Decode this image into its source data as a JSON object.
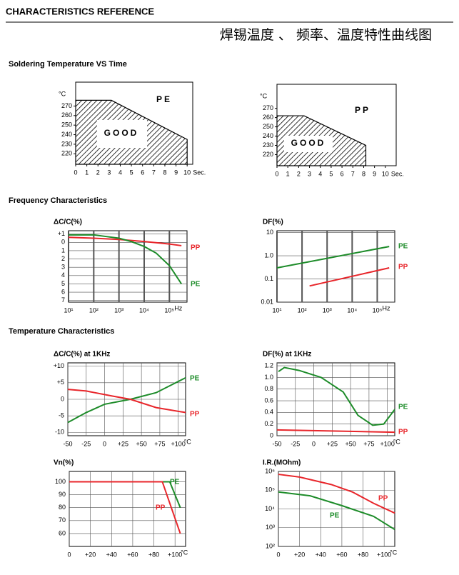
{
  "header": {
    "title": "CHARACTERISTICS REFERENCE",
    "subtitle": "焊锡温度 、 频率、温度特性曲线图"
  },
  "sections": [
    "Soldering Temperature VS Time",
    "Frequency Characteristics",
    "Temperature Characteristics"
  ],
  "chart_data": [
    {
      "type": "area",
      "y_unit": "°C",
      "x_unit": "Sec.",
      "xlim": [
        0,
        10.5
      ],
      "ylim": [
        209,
        295
      ],
      "xticks": [
        0,
        1,
        2,
        3,
        4,
        5,
        6,
        7,
        8,
        9,
        10
      ],
      "yticks": [
        220,
        230,
        240,
        250,
        260,
        270
      ],
      "grid": false,
      "annotations": [
        "GOOD",
        "PE"
      ],
      "series": [
        {
          "name": "PE",
          "color": "#000000",
          "x": [
            0,
            3.2,
            10
          ],
          "values": [
            276,
            276,
            235
          ]
        }
      ]
    },
    {
      "type": "area",
      "y_unit": "°C",
      "x_unit": "Sec.",
      "xlim": [
        0,
        11
      ],
      "ylim": [
        208,
        296
      ],
      "xticks": [
        0,
        1,
        2,
        3,
        4,
        5,
        6,
        7,
        8,
        9,
        10
      ],
      "yticks": [
        220,
        230,
        240,
        250,
        260,
        270
      ],
      "grid": false,
      "annotations": [
        "GOOD",
        "PP"
      ],
      "series": [
        {
          "name": "PP",
          "color": "#000000",
          "x": [
            0,
            2.5,
            8.2
          ],
          "values": [
            262,
            262,
            230
          ]
        }
      ]
    },
    {
      "type": "line",
      "title": "ΔC/C(%)",
      "x_unit": "Hz",
      "xlog": true,
      "xlim": [
        10,
        500000
      ],
      "ylim": [
        -7.2,
        1.4
      ],
      "grid": true,
      "xticks": [
        {
          "value": 10,
          "label": "10¹"
        },
        {
          "value": 100,
          "label": "10²"
        },
        {
          "value": 1000,
          "label": "10³"
        },
        {
          "value": 10000,
          "label": "10⁴"
        },
        {
          "value": 100000,
          "label": "10⁵"
        }
      ],
      "yticks": [
        {
          "value": 1,
          "label": "+1"
        },
        0,
        {
          "value": -1,
          "label": "1"
        },
        {
          "value": -2,
          "label": "2"
        },
        {
          "value": -3,
          "label": "3"
        },
        {
          "value": -4,
          "label": "4"
        },
        {
          "value": -5,
          "label": "5"
        },
        {
          "value": -6,
          "label": "6"
        },
        {
          "value": -7,
          "label": "7"
        }
      ],
      "series": [
        {
          "name": "PP",
          "color": "#e8262b",
          "x": [
            10,
            100,
            1000,
            10000,
            100000,
            300000
          ],
          "values": [
            0.6,
            0.5,
            0.35,
            0.1,
            -0.2,
            -0.4
          ]
        },
        {
          "name": "PE",
          "color": "#1e8c2a",
          "x": [
            10,
            100,
            1000,
            3000,
            10000,
            30000,
            100000,
            300000
          ],
          "values": [
            0.9,
            0.9,
            0.5,
            0.1,
            -0.5,
            -1.3,
            -2.8,
            -5
          ]
        }
      ]
    },
    {
      "type": "line",
      "title": "DF(%)",
      "x_unit": "Hz",
      "xlog": true,
      "ylog": true,
      "xlim": [
        10,
        500000
      ],
      "ylim": [
        0.01,
        12
      ],
      "grid": true,
      "xticks": [
        {
          "value": 10,
          "label": "10¹"
        },
        {
          "value": 100,
          "label": "10²"
        },
        {
          "value": 1000,
          "label": "10³"
        },
        {
          "value": 10000,
          "label": "10⁴"
        },
        {
          "value": 100000,
          "label": "10⁵"
        }
      ],
      "yticks": [
        10,
        {
          "value": 1,
          "label": "1.0"
        },
        0.1,
        0.01
      ],
      "series": [
        {
          "name": "PE",
          "color": "#1e8c2a",
          "x": [
            10,
            300000
          ],
          "values": [
            0.3,
            2.5
          ]
        },
        {
          "name": "PP",
          "color": "#e8262b",
          "x": [
            200,
            300000
          ],
          "values": [
            0.05,
            0.3
          ]
        }
      ]
    },
    {
      "type": "line",
      "title": "ΔC/C(%) at 1KHz",
      "x_unit": "°C",
      "xlim": [
        -50,
        110
      ],
      "ylim": [
        -11,
        11
      ],
      "grid": true,
      "xticks": [
        -50,
        -25,
        0,
        {
          "value": 25,
          "label": "+25"
        },
        {
          "value": 50,
          "label": "+50"
        },
        {
          "value": 75,
          "label": "+75"
        },
        {
          "value": 100,
          "label": "+100"
        }
      ],
      "yticks": [
        {
          "value": 10,
          "label": "+10"
        },
        {
          "value": 5,
          "label": "+5"
        },
        0,
        -5,
        -10
      ],
      "series": [
        {
          "name": "PE",
          "color": "#1e8c2a",
          "x": [
            -50,
            -25,
            0,
            35,
            70,
            110
          ],
          "values": [
            -7,
            -4,
            -1.5,
            0,
            2,
            6.5
          ]
        },
        {
          "name": "PP",
          "color": "#e8262b",
          "x": [
            -50,
            -25,
            10,
            35,
            70,
            110
          ],
          "values": [
            3,
            2.5,
            1,
            0,
            -2.5,
            -4
          ]
        }
      ]
    },
    {
      "type": "line",
      "title": "DF(%) at 1KHz",
      "x_unit": "°C",
      "xlim": [
        -50,
        110
      ],
      "ylim": [
        0,
        1.25
      ],
      "grid": true,
      "xticks": [
        -50,
        -25,
        0,
        {
          "value": 25,
          "label": "+25"
        },
        {
          "value": 50,
          "label": "+50"
        },
        {
          "value": 75,
          "label": "+75"
        },
        {
          "value": 100,
          "label": "+100"
        }
      ],
      "yticks": [
        0,
        0.2,
        0.4,
        0.6,
        0.8,
        {
          "value": 1,
          "label": "1.0"
        },
        1.2
      ],
      "series": [
        {
          "name": "PE",
          "color": "#1e8c2a",
          "x": [
            -48,
            -40,
            -20,
            10,
            40,
            60,
            80,
            95,
            110
          ],
          "values": [
            1.1,
            1.17,
            1.12,
            1.0,
            0.75,
            0.35,
            0.18,
            0.2,
            0.45
          ]
        },
        {
          "name": "PP",
          "color": "#e8262b",
          "x": [
            -50,
            110
          ],
          "values": [
            0.1,
            0.06
          ]
        }
      ]
    },
    {
      "type": "line",
      "title": "Vn(%)",
      "x_unit": "°C",
      "xlim": [
        0,
        110
      ],
      "ylim": [
        50,
        108
      ],
      "grid": true,
      "xticks": [
        0,
        {
          "value": 20,
          "label": "+20"
        },
        {
          "value": 40,
          "label": "+40"
        },
        {
          "value": 60,
          "label": "+60"
        },
        {
          "value": 80,
          "label": "+80"
        },
        {
          "value": 100,
          "label": "+100"
        }
      ],
      "yticks": [
        60,
        70,
        80,
        90,
        100
      ],
      "series": [
        {
          "name": "PE",
          "color": "#1e8c2a",
          "x": [
            0,
            95,
            105
          ],
          "values": [
            100,
            100,
            80
          ]
        },
        {
          "name": "PP",
          "color": "#e8262b",
          "x": [
            0,
            88,
            105
          ],
          "values": [
            100,
            100,
            60
          ]
        }
      ]
    },
    {
      "type": "line",
      "title": "I.R.(MOhm)",
      "x_unit": "°C",
      "ylog": true,
      "xlim": [
        0,
        110
      ],
      "ylim": [
        100,
        1000000
      ],
      "grid": true,
      "xticks": [
        0,
        {
          "value": 20,
          "label": "+20"
        },
        {
          "value": 40,
          "label": "+40"
        },
        {
          "value": 60,
          "label": "+60"
        },
        {
          "value": 80,
          "label": "+80"
        },
        {
          "value": 100,
          "label": "+100"
        }
      ],
      "yticks": [
        {
          "value": 1000000,
          "label": "10⁶"
        },
        {
          "value": 100000,
          "label": "10⁵"
        },
        {
          "value": 10000,
          "label": "10⁴"
        },
        {
          "value": 1000,
          "label": "10³"
        },
        {
          "value": 100,
          "label": "10²"
        }
      ],
      "series": [
        {
          "name": "PP",
          "color": "#e8262b",
          "x": [
            0,
            20,
            50,
            70,
            90,
            110
          ],
          "values": [
            700000,
            500000,
            200000,
            80000,
            20000,
            6000
          ]
        },
        {
          "name": "PE",
          "color": "#1e8c2a",
          "x": [
            0,
            30,
            60,
            90,
            110
          ],
          "values": [
            80000,
            50000,
            15000,
            4000,
            800
          ]
        }
      ]
    }
  ]
}
